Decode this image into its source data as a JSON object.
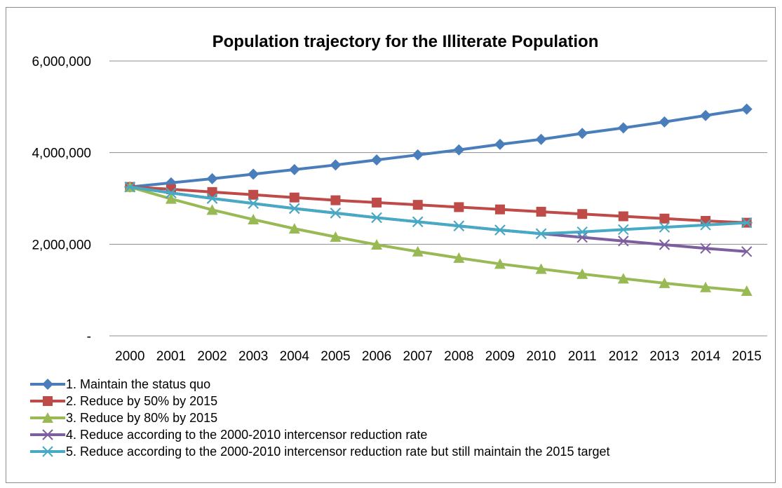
{
  "chart_data": {
    "type": "line",
    "title": "Population trajectory for the Illiterate Population",
    "xlabel": "",
    "ylabel": "",
    "x": [
      "2000",
      "2001",
      "2002",
      "2003",
      "2004",
      "2005",
      "2006",
      "2007",
      "2008",
      "2009",
      "2010",
      "2011",
      "2012",
      "2013",
      "2014",
      "2015"
    ],
    "ylim": [
      0,
      6000000
    ],
    "yticks": [
      0,
      2000000,
      4000000,
      6000000
    ],
    "ytick_labels": [
      "-",
      "2,000,000",
      "4,000,000",
      "6,000,000"
    ],
    "grid": "horizontal",
    "legend_position": "bottom",
    "series": [
      {
        "name": "1. Maintain the status quo",
        "color": "#4a7ebb",
        "marker": "diamond",
        "values": [
          3250000,
          3340000,
          3430000,
          3530000,
          3630000,
          3730000,
          3840000,
          3950000,
          4060000,
          4180000,
          4290000,
          4420000,
          4540000,
          4670000,
          4810000,
          4950000
        ]
      },
      {
        "name": "2. Reduce by 50% by 2015",
        "color": "#be4b48",
        "marker": "square",
        "values": [
          3250000,
          3200000,
          3140000,
          3080000,
          3020000,
          2960000,
          2910000,
          2860000,
          2810000,
          2760000,
          2710000,
          2660000,
          2610000,
          2560000,
          2510000,
          2470000
        ]
      },
      {
        "name": "3. Reduce by 80% by 2015",
        "color": "#98b954",
        "marker": "triangle",
        "values": [
          3250000,
          2990000,
          2750000,
          2540000,
          2340000,
          2160000,
          1990000,
          1840000,
          1700000,
          1570000,
          1460000,
          1350000,
          1250000,
          1150000,
          1060000,
          980000
        ]
      },
      {
        "name": "4. Reduce according to the 2000-2010 intercensor reduction rate",
        "color": "#7d5fa0",
        "marker": "x",
        "values": [
          3250000,
          3120000,
          3000000,
          2890000,
          2780000,
          2680000,
          2580000,
          2490000,
          2400000,
          2310000,
          2230000,
          2150000,
          2070000,
          1990000,
          1910000,
          1840000
        ]
      },
      {
        "name": "5. Reduce according to the 2000-2010 intercensor reduction rate but still maintain the 2015 target",
        "color": "#46aac5",
        "marker": "star",
        "values": [
          3250000,
          3120000,
          3000000,
          2890000,
          2780000,
          2680000,
          2580000,
          2490000,
          2400000,
          2310000,
          2230000,
          2270000,
          2320000,
          2370000,
          2420000,
          2470000
        ]
      }
    ]
  }
}
